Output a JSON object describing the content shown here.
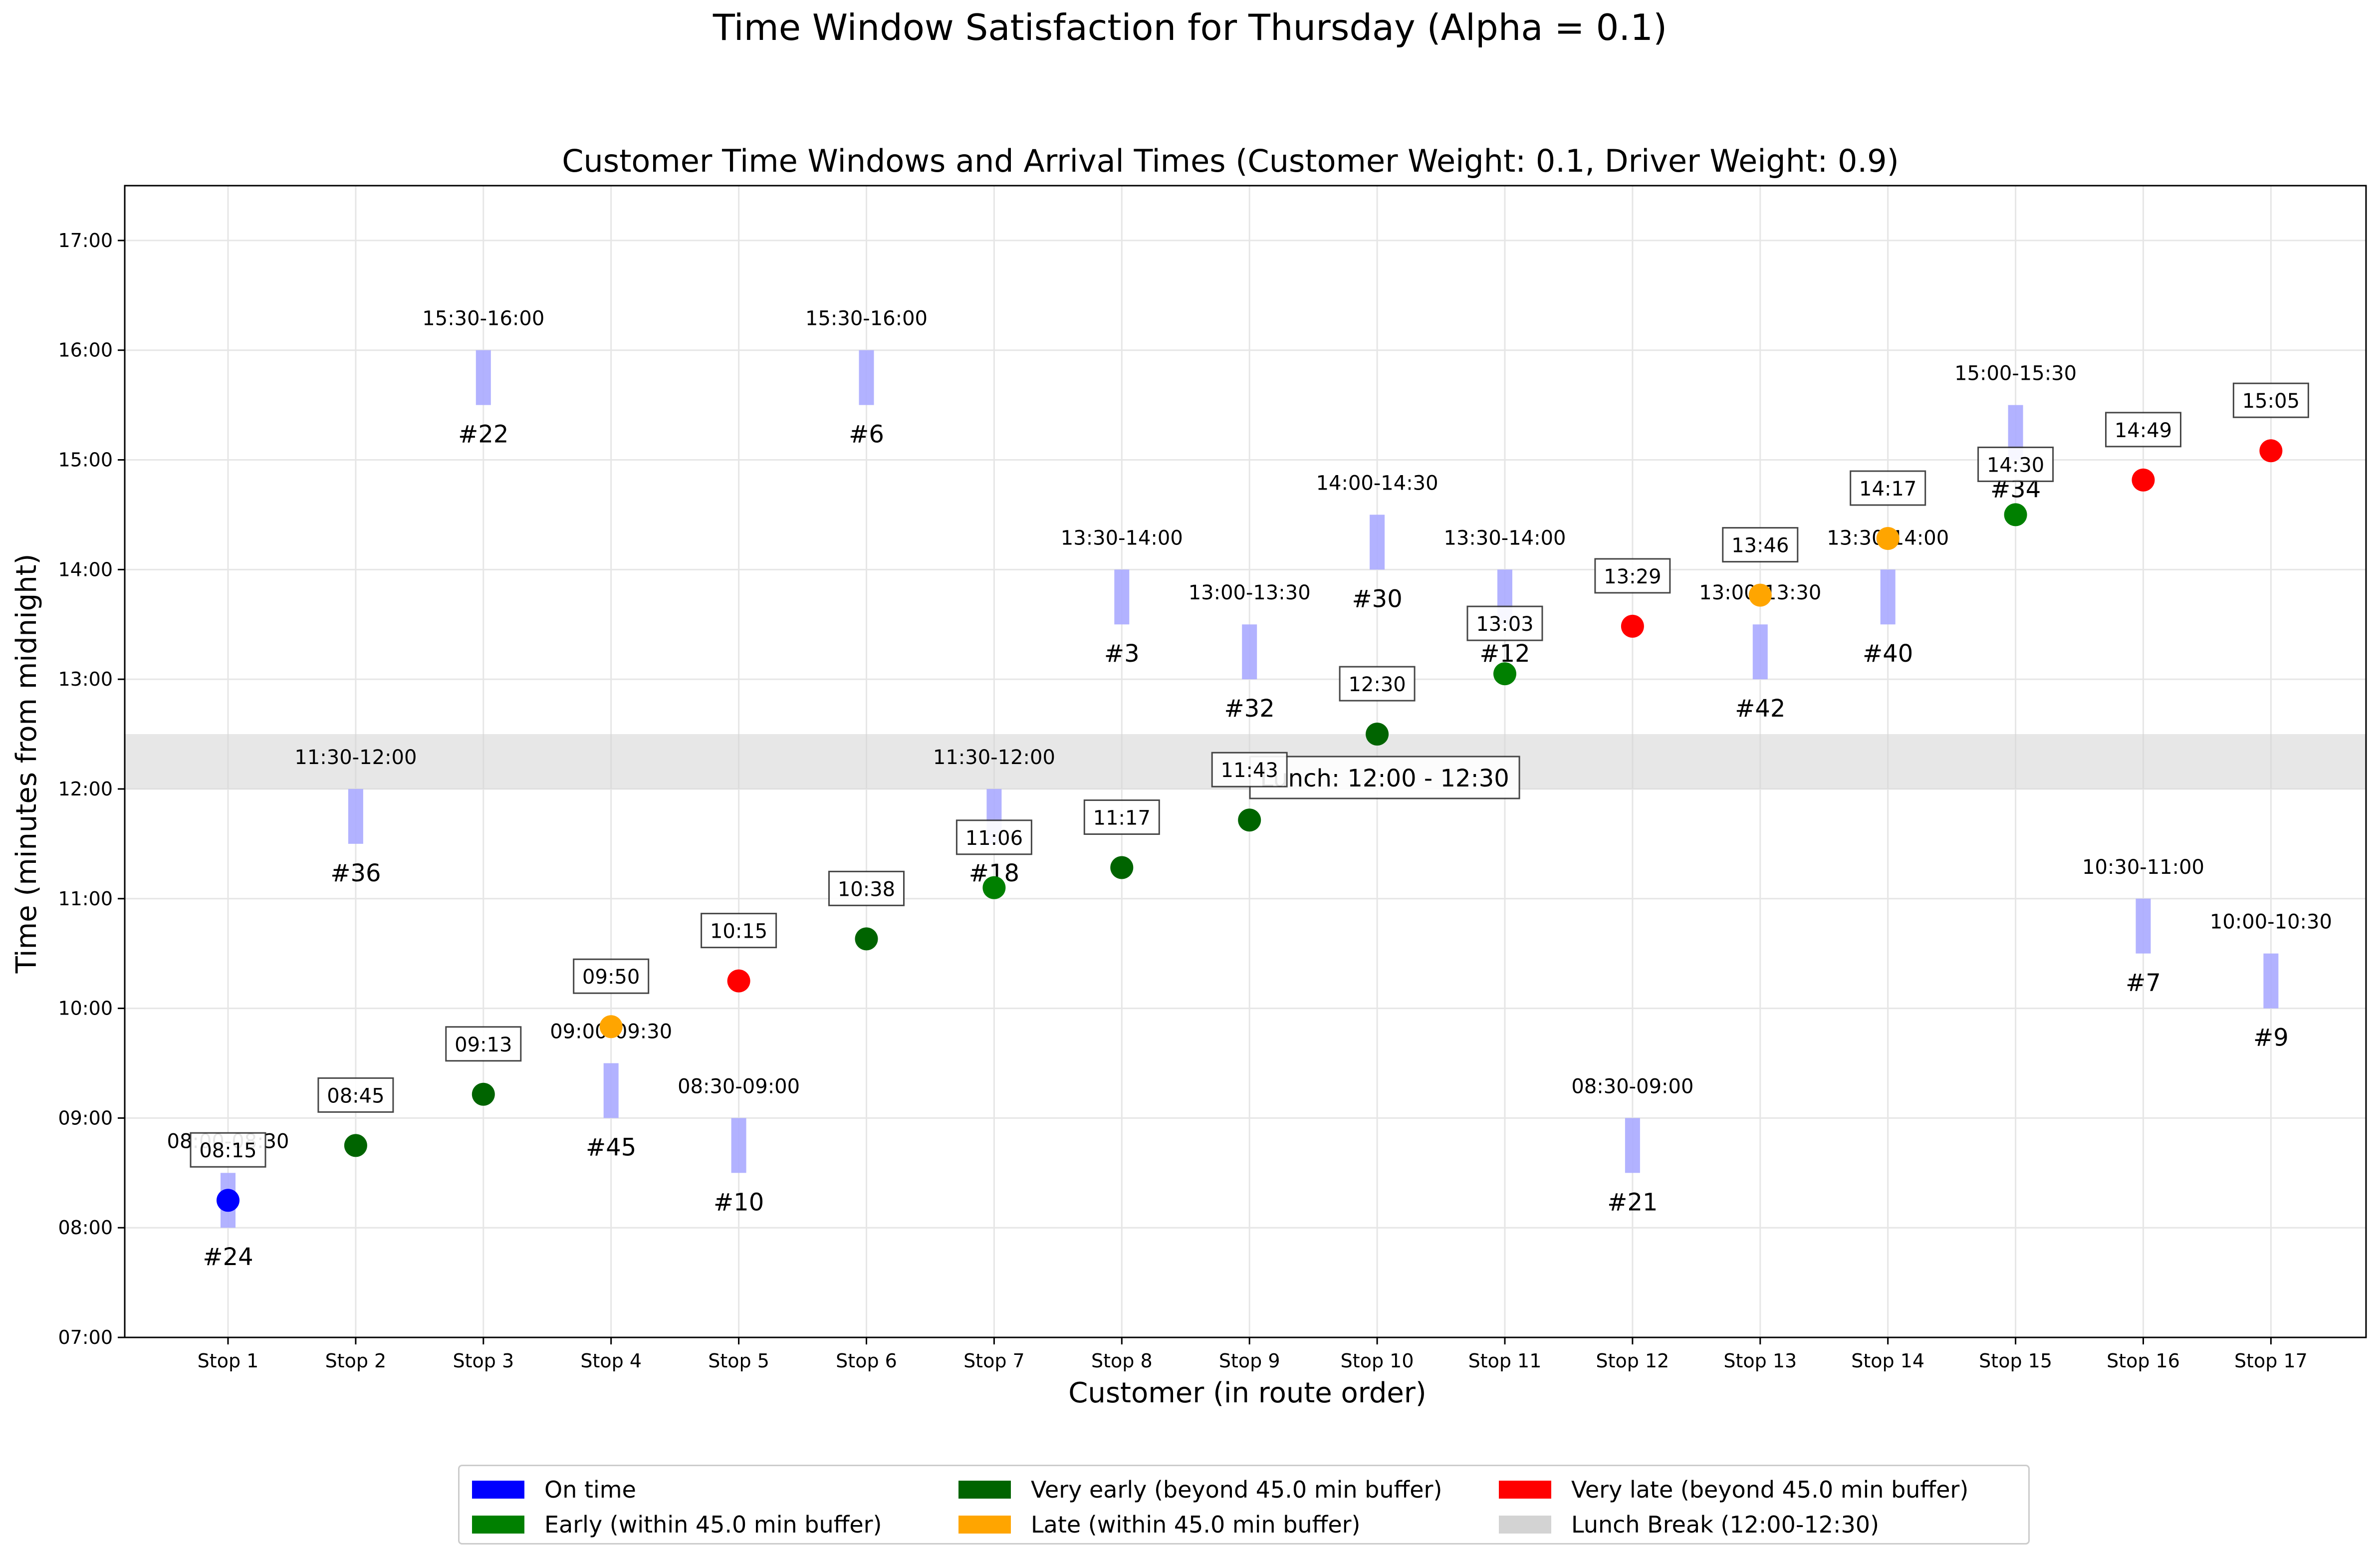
{
  "suptitle": "Time Window Satisfaction for Thursday (Alpha = 0.1)",
  "chart_data": {
    "type": "scatter",
    "title": "Customer Time Windows and Arrival Times (Customer Weight: 0.1, Driver Weight: 0.9)",
    "xlabel": "Customer (in route order)",
    "ylabel": "Time (minutes from midnight)",
    "ylim": [
      "07:00",
      "17:30"
    ],
    "yticks": [
      "07:00",
      "08:00",
      "09:00",
      "10:00",
      "11:00",
      "12:00",
      "13:00",
      "14:00",
      "15:00",
      "16:00",
      "17:00"
    ],
    "categories": [
      "Stop 1",
      "Stop 2",
      "Stop 3",
      "Stop 4",
      "Stop 5",
      "Stop 6",
      "Stop 7",
      "Stop 8",
      "Stop 9",
      "Stop 10",
      "Stop 11",
      "Stop 12",
      "Stop 13",
      "Stop 14",
      "Stop 15",
      "Stop 16",
      "Stop 17"
    ],
    "grid": true,
    "legend_position": "below",
    "lunch_break": {
      "start": "12:00",
      "end": "12:30",
      "label": "Lunch: 12:00 - 12:30"
    },
    "stops": [
      {
        "stop": "Stop 1",
        "customer": "#24",
        "window": "08:00-08:30",
        "arrival": "08:15",
        "status": "on_time"
      },
      {
        "stop": "Stop 2",
        "customer": "#36",
        "window": "11:30-12:00",
        "arrival": "08:45",
        "status": "very_early"
      },
      {
        "stop": "Stop 3",
        "customer": "#22",
        "window": "15:30-16:00",
        "arrival": "09:13",
        "status": "very_early"
      },
      {
        "stop": "Stop 4",
        "customer": "#45",
        "window": "09:00-09:30",
        "arrival": "09:50",
        "status": "late"
      },
      {
        "stop": "Stop 5",
        "customer": "#10",
        "window": "08:30-09:00",
        "arrival": "10:15",
        "status": "very_late"
      },
      {
        "stop": "Stop 6",
        "customer": "#6",
        "window": "15:30-16:00",
        "arrival": "10:38",
        "status": "very_early"
      },
      {
        "stop": "Stop 7",
        "customer": "#18",
        "window": "11:30-12:00",
        "arrival": "11:06",
        "status": "early"
      },
      {
        "stop": "Stop 8",
        "customer": "#3",
        "window": "13:30-14:00",
        "arrival": "11:17",
        "status": "very_early"
      },
      {
        "stop": "Stop 9",
        "customer": "#32",
        "window": "13:00-13:30",
        "arrival": "11:43",
        "status": "very_early"
      },
      {
        "stop": "Stop 10",
        "customer": "#30",
        "window": "14:00-14:30",
        "arrival": "12:30",
        "status": "very_early"
      },
      {
        "stop": "Stop 11",
        "customer": "#12",
        "window": "13:30-14:00",
        "arrival": "13:03",
        "status": "early"
      },
      {
        "stop": "Stop 12",
        "customer": "#21",
        "window": "08:30-09:00",
        "arrival": "13:29",
        "status": "very_late"
      },
      {
        "stop": "Stop 13",
        "customer": "#42",
        "window": "13:00-13:30",
        "arrival": "13:46",
        "status": "late"
      },
      {
        "stop": "Stop 14",
        "customer": "#40",
        "window": "13:30-14:00",
        "arrival": "14:17",
        "status": "late"
      },
      {
        "stop": "Stop 15",
        "customer": "#34",
        "window": "15:00-15:30",
        "arrival": "14:30",
        "status": "early"
      },
      {
        "stop": "Stop 16",
        "customer": "#7",
        "window": "10:30-11:00",
        "arrival": "14:49",
        "status": "very_late"
      },
      {
        "stop": "Stop 17",
        "customer": "#9",
        "window": "10:00-10:30",
        "arrival": "15:05",
        "status": "very_late"
      }
    ],
    "status_colors": {
      "on_time": "#0000ff",
      "early": "#008000",
      "very_early": "#006400",
      "late": "#ffa500",
      "very_late": "#ff0000",
      "window": "#aaaaff",
      "lunch": "#d3d3d3"
    },
    "legend": [
      {
        "label": "On time",
        "color": "#0000ff"
      },
      {
        "label": "Early (within 45.0 min buffer)",
        "color": "#008000"
      },
      {
        "label": "Very early (beyond 45.0 min buffer)",
        "color": "#006400"
      },
      {
        "label": "Late (within 45.0 min buffer)",
        "color": "#ffa500"
      },
      {
        "label": "Very late (beyond 45.0 min buffer)",
        "color": "#ff0000"
      },
      {
        "label": "Lunch Break (12:00-12:30)",
        "color": "#d3d3d3"
      }
    ]
  }
}
